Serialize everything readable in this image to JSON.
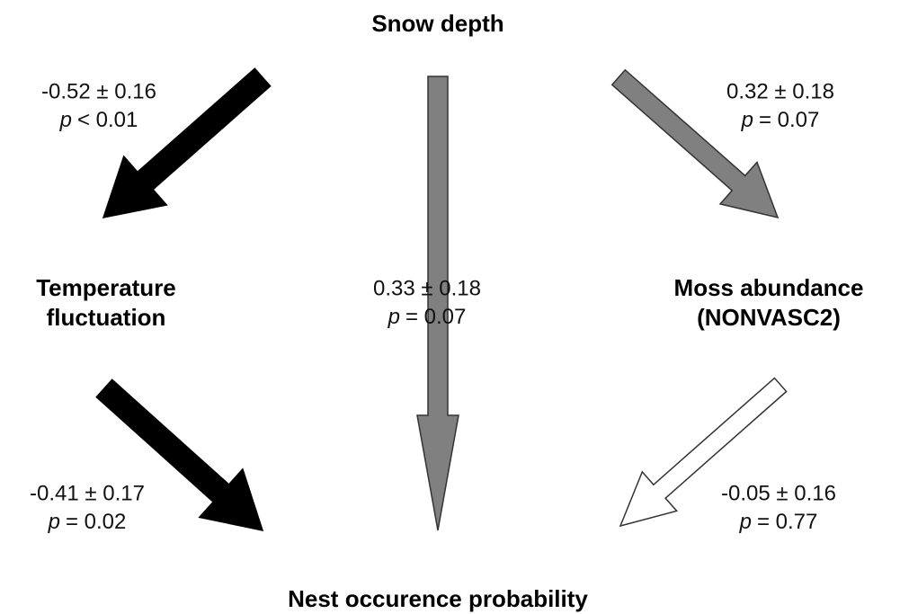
{
  "nodes": [
    {
      "lines": [
        "Snow depth"
      ]
    },
    {
      "lines": [
        "Temperature",
        "fluctuation"
      ]
    },
    {
      "lines": [
        "Moss abundance",
        "(NONVASC2)"
      ]
    },
    {
      "lines": [
        "Nest occurence probability"
      ]
    }
  ],
  "edges": [
    {
      "estimate": "-0.52 ± 0.16",
      "stat_symbol": "p",
      "p_value": "< 0.01"
    },
    {
      "estimate": "0.33 ± 0.18",
      "stat_symbol": "p",
      "p_value": "= 0.07"
    },
    {
      "estimate": "0.32 ± 0.18",
      "stat_symbol": "p",
      "p_value": "= 0.07"
    },
    {
      "estimate": "-0.41 ± 0.17",
      "stat_symbol": "p",
      "p_value": "= 0.02"
    },
    {
      "estimate": "-0.05 ± 0.16",
      "stat_symbol": "p",
      "p_value": "= 0.77"
    }
  ]
}
